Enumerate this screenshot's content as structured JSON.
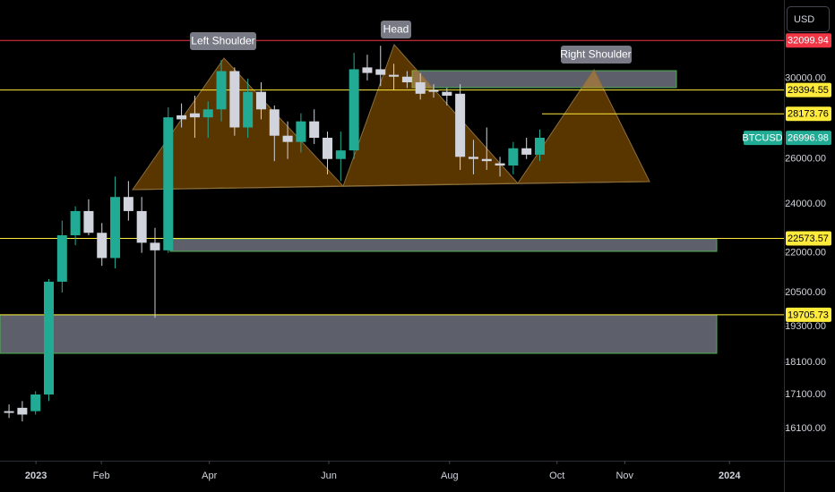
{
  "chart_data": {
    "type": "candlestick",
    "symbol": "BTCUSD",
    "currency": "USD",
    "log_scale": true,
    "grid": false,
    "up_color": "#22ab94",
    "down_color": "#d1d4dc",
    "xlim": [
      -0.68,
      58.4
    ],
    "xticks": [
      {
        "value": 2.03,
        "label": "2023"
      },
      {
        "value": 6.96,
        "label": "Feb"
      },
      {
        "value": 15.1,
        "label": "Apr"
      },
      {
        "value": 24.1,
        "label": "Jun"
      },
      {
        "value": 33.2,
        "label": "Aug"
      },
      {
        "value": 41.3,
        "label": "Oct"
      },
      {
        "value": 46.4,
        "label": "Nov"
      },
      {
        "value": 54.3,
        "label": "2024"
      }
    ],
    "ylim": [
      15200,
      34500
    ],
    "yticks": [
      {
        "value": 30000,
        "label": "30000.00"
      },
      {
        "value": 26000,
        "label": "26000.00"
      },
      {
        "value": 24000,
        "label": "24000.00"
      },
      {
        "value": 22000,
        "label": "22000.00"
      },
      {
        "value": 20500,
        "label": "20500.00"
      },
      {
        "value": 19300,
        "label": "19300.00"
      },
      {
        "value": 18100,
        "label": "18100.00"
      },
      {
        "value": 17100,
        "label": "17100.00"
      },
      {
        "value": 16100,
        "label": "16100.00"
      }
    ],
    "candles": {
      "open": [
        16600,
        16700,
        16600,
        17100,
        20900,
        22700,
        23700,
        22800,
        21800,
        24300,
        23700,
        22400,
        22100,
        28100,
        28200,
        28000,
        28400,
        30400,
        27500,
        29300,
        28400,
        27100,
        26800,
        27800,
        27000,
        26000,
        26400,
        30600,
        30500,
        30200,
        30100,
        29800,
        29400,
        29300,
        29200,
        26100,
        26000,
        25800,
        25700,
        26500,
        26200
      ],
      "high": [
        16800,
        16900,
        17200,
        21000,
        23300,
        23900,
        24200,
        23200,
        25200,
        25000,
        24300,
        23000,
        28500,
        28700,
        29100,
        28800,
        31000,
        30600,
        30000,
        29800,
        28600,
        27800,
        28200,
        28400,
        27300,
        27300,
        31400,
        31300,
        31800,
        30800,
        30400,
        30300,
        29700,
        29500,
        29700,
        26900,
        27500,
        26100,
        26800,
        27000,
        27400
      ],
      "low": [
        16400,
        16300,
        16500,
        16900,
        20500,
        22300,
        22700,
        21500,
        21400,
        23300,
        22000,
        19600,
        22000,
        27500,
        27000,
        27000,
        27800,
        27100,
        27000,
        27900,
        25900,
        26000,
        26300,
        26700,
        25300,
        25000,
        26000,
        29900,
        29600,
        29400,
        29500,
        28900,
        29000,
        28600,
        25500,
        25300,
        25500,
        25200,
        25300,
        26000,
        25900
      ],
      "close": [
        16550,
        16500,
        17100,
        20900,
        22700,
        23700,
        22800,
        21800,
        24300,
        23700,
        22400,
        22100,
        28000,
        27900,
        28000,
        28400,
        30400,
        27500,
        29300,
        28400,
        27100,
        26800,
        27800,
        27000,
        26000,
        26400,
        30500,
        30300,
        30200,
        30100,
        29800,
        29200,
        29300,
        29100,
        26100,
        26000,
        25900,
        25700,
        26500,
        26200,
        27000
      ]
    },
    "levels": [
      {
        "value": 32099.94,
        "color": "#f23645",
        "text_color": "#ffffff"
      },
      {
        "value": 29394.55,
        "color": "#ffeb3b",
        "text_color": "#000000"
      },
      {
        "value": 28173.76,
        "color": "#ffeb3b",
        "text_color": "#000000"
      },
      {
        "value": 26996.98,
        "color": "#22ab94",
        "text_color": "#ffffff"
      },
      {
        "value": 22573.57,
        "color": "#ffeb3b",
        "text_color": "#000000"
      },
      {
        "value": 19705.73,
        "color": "#ffeb3b",
        "text_color": "#000000"
      }
    ],
    "annotations": [
      "Left Shoulder",
      "Head",
      "Right Shoulder"
    ]
  }
}
